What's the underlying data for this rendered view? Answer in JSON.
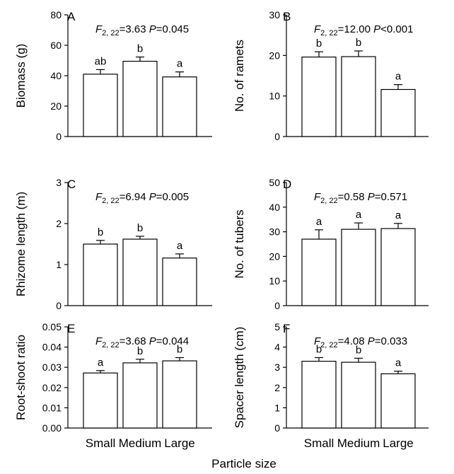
{
  "figure": {
    "xlabel": "Particle size",
    "categories": [
      "Small",
      "Medium",
      "Large"
    ]
  },
  "chart_data": [
    {
      "type": "bar",
      "panel": "A",
      "ylabel": "Biomass (g)",
      "categories": [
        "Small",
        "Medium",
        "Large"
      ],
      "values": [
        41,
        49.5,
        39.2
      ],
      "errors": [
        3,
        2.8,
        3.3
      ],
      "letters": [
        "ab",
        "b",
        "a"
      ],
      "ylim": [
        0,
        80
      ],
      "yticks": [
        0,
        20,
        40,
        60,
        80
      ],
      "ytick_labels": [
        "0",
        "20",
        "40",
        "60",
        "80"
      ],
      "stat": {
        "f_italic": "F",
        "df": "2, 22",
        "f_value": "=3.63",
        "p_italic": "P",
        "p_value": "=0.045"
      }
    },
    {
      "type": "bar",
      "panel": "B",
      "ylabel": "No. of ramets",
      "categories": [
        "Small",
        "Medium",
        "Large"
      ],
      "values": [
        19.6,
        19.7,
        11.6
      ],
      "errors": [
        1.3,
        1.4,
        1.2
      ],
      "letters": [
        "b",
        "b",
        "a"
      ],
      "ylim": [
        0,
        30
      ],
      "yticks": [
        0,
        10,
        20,
        30
      ],
      "ytick_labels": [
        "0",
        "10",
        "20",
        "30"
      ],
      "stat": {
        "f_italic": "F",
        "df": "2, 22",
        "f_value": "=12.00",
        "p_italic": "P",
        "p_value": "<0.001"
      }
    },
    {
      "type": "bar",
      "panel": "C",
      "ylabel": "Rhizome length (m)",
      "categories": [
        "Small",
        "Medium",
        "Large"
      ],
      "values": [
        1.5,
        1.62,
        1.16
      ],
      "errors": [
        0.09,
        0.07,
        0.1
      ],
      "letters": [
        "b",
        "b",
        "a"
      ],
      "ylim": [
        0,
        3
      ],
      "yticks": [
        0,
        1,
        2,
        3
      ],
      "ytick_labels": [
        "0",
        "1",
        "2",
        "3"
      ],
      "stat": {
        "f_italic": "F",
        "df": "2, 22",
        "f_value": "=6.94",
        "p_italic": "P",
        "p_value": "=0.005"
      }
    },
    {
      "type": "bar",
      "panel": "D",
      "ylabel": "No. of tubers",
      "categories": [
        "Small",
        "Medium",
        "Large"
      ],
      "values": [
        27,
        31,
        31.3
      ],
      "errors": [
        3.8,
        2.6,
        2.1
      ],
      "letters": [
        "a",
        "a",
        "a"
      ],
      "ylim": [
        0,
        50
      ],
      "yticks": [
        0,
        10,
        20,
        30,
        40,
        50
      ],
      "ytick_labels": [
        "0",
        "10",
        "20",
        "30",
        "40",
        "50"
      ],
      "stat": {
        "f_italic": "F",
        "df": "2, 22",
        "f_value": "=0.58",
        "p_italic": "P",
        "p_value": "=0.571"
      }
    },
    {
      "type": "bar",
      "panel": "E",
      "ylabel": "Root-shoot ratio",
      "categories": [
        "Small",
        "Medium",
        "Large"
      ],
      "values": [
        0.0272,
        0.0322,
        0.0332
      ],
      "errors": [
        0.0012,
        0.0018,
        0.0016
      ],
      "letters": [
        "a",
        "b",
        "b"
      ],
      "ylim": [
        0,
        0.05
      ],
      "yticks": [
        0,
        0.01,
        0.02,
        0.03,
        0.04,
        0.05
      ],
      "ytick_labels": [
        "0.00",
        "0.01",
        "0.02",
        "0.03",
        "0.04",
        "0.05"
      ],
      "stat": {
        "f_italic": "F",
        "df": "2, 22",
        "f_value": "=3.68",
        "p_italic": "P",
        "p_value": "=0.044"
      }
    },
    {
      "type": "bar",
      "panel": "F",
      "ylabel": "Spacer length (cm)",
      "categories": [
        "Small",
        "Medium",
        "Large"
      ],
      "values": [
        3.3,
        3.25,
        2.68
      ],
      "errors": [
        0.18,
        0.2,
        0.13
      ],
      "letters": [
        "b",
        "b",
        "a"
      ],
      "ylim": [
        0,
        5
      ],
      "yticks": [
        0,
        1,
        2,
        3,
        4,
        5
      ],
      "ytick_labels": [
        "0",
        "1",
        "2",
        "3",
        "4",
        "5"
      ],
      "stat": {
        "f_italic": "F",
        "df": "2, 22",
        "f_value": "=4.08",
        "p_italic": "P",
        "p_value": "=0.033"
      }
    }
  ]
}
